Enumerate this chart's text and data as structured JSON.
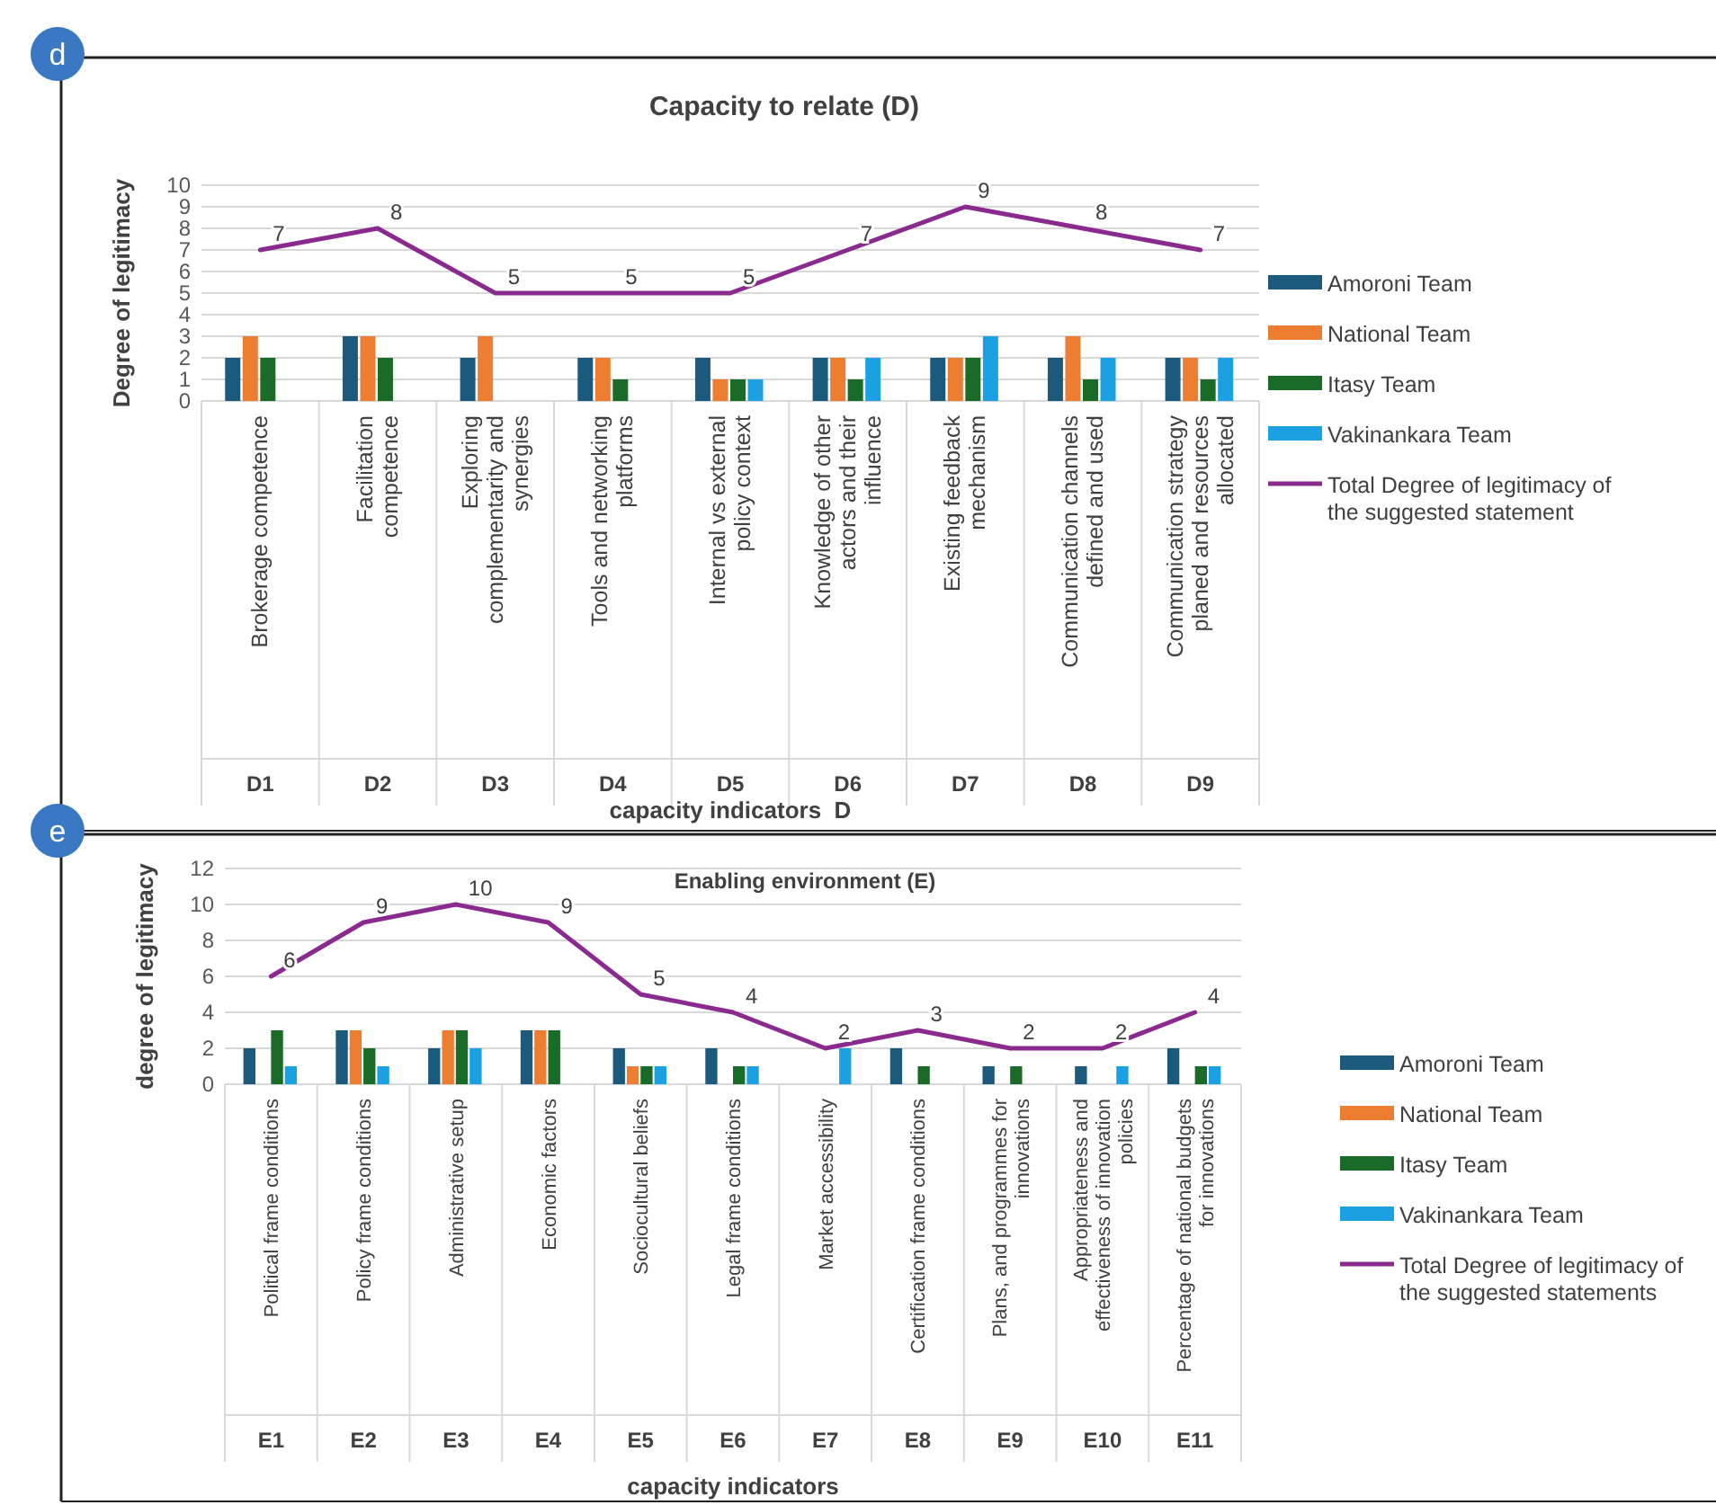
{
  "chart_data": [
    {
      "type": "bar",
      "title": "Capacity to relate (D)",
      "xlabel": "capacity indicators  D",
      "ylabel": "Degree of legitimacy",
      "annotations": [
        "d"
      ],
      "categories": [
        "Brokerage competence\nD1",
        "Facilitation competence\nD2",
        "Exploring complementarity and synergies\nD3",
        "Tools and networking platforms\nD4",
        "Internal vs external policy context\nD5",
        "Knowledge of other actors and their influence\nD6",
        "Existing feedback mechanism\nD7",
        "Communication channels defined and used\nD8",
        "Communication strategy planed and resources allocated\nD9"
      ],
      "ylim": [
        0,
        10
      ],
      "yticks": [
        0,
        1,
        2,
        3,
        4,
        5,
        6,
        7,
        8,
        9,
        10
      ],
      "grid": "y",
      "legend": "right",
      "series": [
        {
          "name": "Amoroni Team",
          "color": "#1b5a7d",
          "values": [
            2,
            3,
            2,
            2,
            2,
            2,
            2,
            2,
            2
          ]
        },
        {
          "name": "National Team",
          "color": "#ed7d31",
          "values": [
            3,
            3,
            3,
            2,
            1,
            2,
            2,
            3,
            2
          ]
        },
        {
          "name": "Itasy Team",
          "color": "#1a6b27",
          "values": [
            2,
            2,
            null,
            1,
            1,
            1,
            2,
            1,
            1
          ]
        },
        {
          "name": "Vakinankara Team",
          "color": "#1ba1e2",
          "values": [
            null,
            null,
            null,
            null,
            1,
            2,
            3,
            2,
            2
          ]
        },
        {
          "name": "Total Degree of legitimacy of the suggested statement",
          "color": "#8b2a8e",
          "type": "line",
          "values": [
            7,
            8,
            5,
            5,
            5,
            7,
            9,
            8,
            7
          ],
          "value_labels": [
            "7",
            "8",
            "5",
            "5",
            "5",
            "7",
            "9",
            "8",
            "7"
          ]
        }
      ]
    },
    {
      "type": "bar",
      "title": "Enabling environment (E)",
      "xlabel": "capacity indicators",
      "ylabel": "degree of legitimacy",
      "annotations": [
        "e"
      ],
      "categories": [
        "Political frame conditions\nE1",
        "Policy frame conditions\nE2",
        "Administrative setup\nE3",
        "Economic factors\nE4",
        "Sociocultural beliefs\nE5",
        "Legal frame conditions\nE6",
        "Market accessibility\nE7",
        "Certification frame conditions\nE8",
        "Plans, and programmes for innovations\nE9",
        "Appropriateness and effectiveness of innovation policies\nE10",
        "Percentage of national budgets for innovations\nE11"
      ],
      "ylim": [
        0,
        12
      ],
      "yticks": [
        0,
        2,
        4,
        6,
        8,
        10,
        12
      ],
      "grid": "y",
      "legend": "right",
      "series": [
        {
          "name": "Amoroni Team",
          "color": "#1b5a7d",
          "values": [
            2,
            3,
            2,
            3,
            2,
            2,
            null,
            2,
            1,
            1,
            2
          ]
        },
        {
          "name": "National Team",
          "color": "#ed7d31",
          "values": [
            null,
            3,
            3,
            3,
            1,
            null,
            null,
            null,
            null,
            null,
            null
          ]
        },
        {
          "name": "Itasy Team",
          "color": "#1a6b27",
          "values": [
            3,
            2,
            3,
            3,
            1,
            1,
            null,
            1,
            1,
            null,
            1
          ]
        },
        {
          "name": "Vakinankara Team",
          "color": "#1ba1e2",
          "values": [
            1,
            1,
            2,
            null,
            1,
            1,
            2,
            null,
            null,
            1,
            1
          ]
        },
        {
          "name": "Total Degree of legitimacy of the suggested statements",
          "color": "#8b2a8e",
          "type": "line",
          "values": [
            6,
            9,
            10,
            9,
            5,
            4,
            2,
            3,
            2,
            2,
            4
          ],
          "value_labels": [
            "6",
            "9",
            "10",
            "9",
            "5",
            "4",
            "2",
            "3",
            "2",
            "2",
            "4"
          ]
        }
      ]
    }
  ]
}
